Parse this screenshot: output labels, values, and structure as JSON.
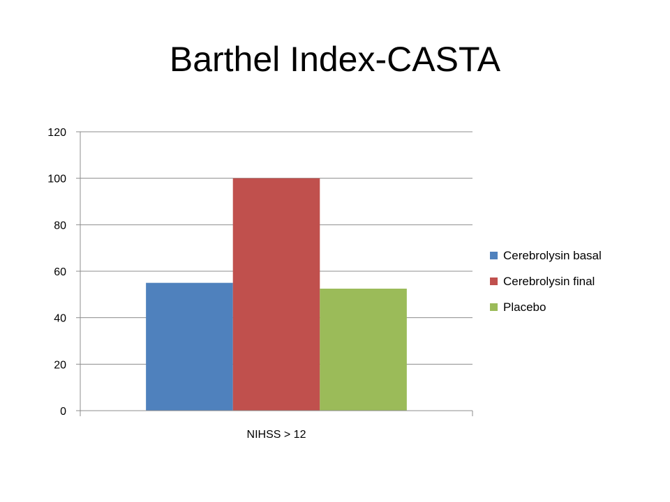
{
  "title": "Barthel Index-CASTA",
  "chart_data": {
    "type": "bar",
    "title": "",
    "categories": [
      "NIHSS > 12"
    ],
    "series": [
      {
        "name": "Cerebrolysin basal",
        "values": [
          55
        ],
        "color": "#4f81bd"
      },
      {
        "name": "Cerebrolysin final",
        "values": [
          100
        ],
        "color": "#c0504d"
      },
      {
        "name": "Placebo",
        "values": [
          52.5
        ],
        "color": "#9bbb59"
      }
    ],
    "ylim": [
      0,
      120
    ],
    "yticks": [
      0,
      20,
      40,
      60,
      80,
      100,
      120
    ],
    "grid": true,
    "legend": "right"
  }
}
